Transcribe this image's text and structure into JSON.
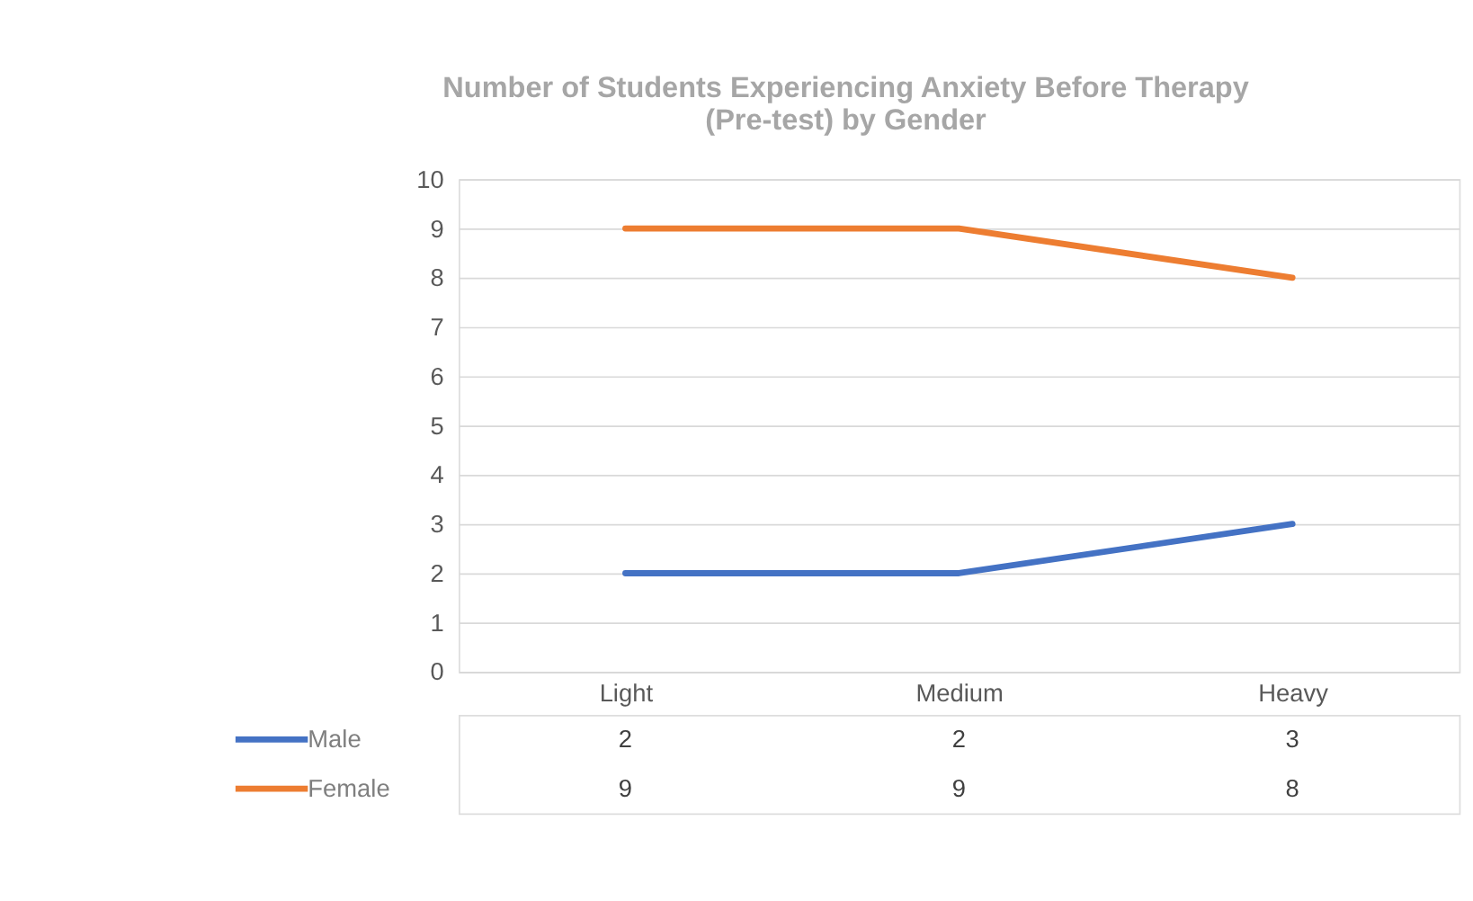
{
  "chart_data": {
    "type": "line",
    "title": "Number of Students Experiencing Anxiety Before Therapy\n(Pre-test) by Gender",
    "categories": [
      "Light",
      "Medium",
      "Heavy"
    ],
    "series": [
      {
        "name": "Male",
        "color": "#4472c4",
        "values": [
          2,
          2,
          3
        ]
      },
      {
        "name": "Female",
        "color": "#ed7d31",
        "values": [
          9,
          9,
          8
        ]
      }
    ],
    "ylim": [
      0,
      10
    ],
    "yticks": [
      0,
      1,
      2,
      3,
      4,
      5,
      6,
      7,
      8,
      9,
      10
    ],
    "grid": "y",
    "legend": "bottom",
    "data_labels": true,
    "marker": "none",
    "line_style": "solid"
  }
}
